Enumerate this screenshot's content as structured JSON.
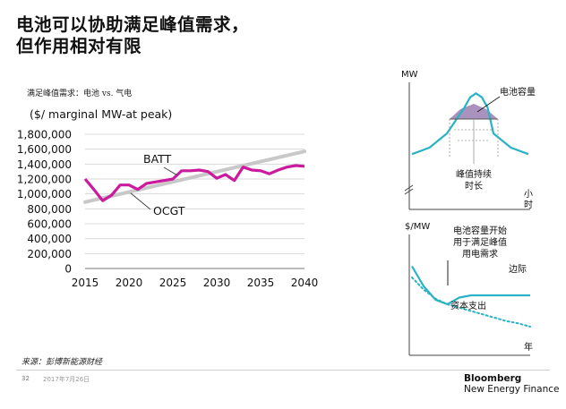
{
  "slide": {
    "title_line1": "电池可以协助满足峰值需求，",
    "title_line2": "但作用相对有限",
    "subtitle": "满足峰值需求：电池 vs. 气电",
    "source": "来源：彭博新能源财经",
    "page_number": "32",
    "date": "2017年7月26日",
    "brand_line1": "Bloomberg",
    "brand_line2": "New Energy Finance"
  },
  "colors": {
    "batt": "#cc1a9e",
    "ocgt": "#c8c8c8",
    "teal": "#29b3c4",
    "purple": "#9a7fb3",
    "axis": "#444444"
  },
  "chart_data": [
    {
      "type": "line",
      "title": "满足峰值需求：电池 vs. 气电",
      "ylabel": "($/ marginal MW-at peak)",
      "xlabel": "",
      "x_ticks": [
        "2015",
        "2020",
        "2025",
        "2030",
        "2035",
        "2040"
      ],
      "y_ticks": [
        "1,800,000",
        "1,600,000",
        "1,400,000",
        "1,200,000",
        "1,000,000",
        "800,000",
        "600,000",
        "400,000",
        "200,000",
        "0"
      ],
      "ylim": [
        0,
        1800000
      ],
      "xlim": [
        2015,
        2040
      ],
      "grid": true,
      "series": [
        {
          "name": "BATT",
          "x": [
            2015,
            2016,
            2017,
            2018,
            2019,
            2020,
            2021,
            2022,
            2023,
            2024,
            2025,
            2026,
            2027,
            2028,
            2029,
            2030,
            2031,
            2032,
            2033,
            2034,
            2035,
            2036,
            2037,
            2038,
            2039,
            2040
          ],
          "values": [
            1200000,
            1060000,
            910000,
            980000,
            1120000,
            1120000,
            1060000,
            1140000,
            1160000,
            1180000,
            1200000,
            1310000,
            1310000,
            1320000,
            1300000,
            1210000,
            1260000,
            1180000,
            1360000,
            1320000,
            1310000,
            1270000,
            1320000,
            1360000,
            1380000,
            1370000
          ]
        },
        {
          "name": "OCGT",
          "x": [
            2015,
            2040
          ],
          "values": [
            890000,
            1570000
          ]
        }
      ]
    },
    {
      "type": "line",
      "ylabel": "MW",
      "xlabel": "小时",
      "annotations": [
        "电池容量",
        "峰值持续时长"
      ],
      "series": [
        {
          "name": "demand",
          "x": [
            0,
            3,
            6,
            9,
            10,
            11,
            12,
            13,
            14,
            17,
            20
          ],
          "values": [
            4.0,
            4.5,
            5.6,
            7.6,
            8.4,
            8.7,
            8.4,
            7.6,
            5.6,
            4.5,
            4.0
          ]
        }
      ]
    },
    {
      "type": "line",
      "ylabel": "$/MW",
      "xlabel": "年",
      "annotations": [
        "电池容量开始用于满足峰值用电需求",
        "边际",
        "资本支出"
      ],
      "series": [
        {
          "name": "边际",
          "x": [
            0,
            1,
            2,
            3,
            4,
            5,
            6,
            7,
            8,
            9,
            10
          ],
          "values": [
            7.0,
            5.2,
            4.0,
            3.6,
            4.2,
            4.4,
            4.4,
            4.4,
            4.4,
            4.4,
            4.4
          ]
        },
        {
          "name": "资本支出",
          "x": [
            0,
            1,
            2,
            3,
            4,
            5,
            6,
            7,
            8,
            9,
            10
          ],
          "values": [
            6.0,
            4.9,
            4.1,
            3.6,
            3.3,
            3.0,
            2.7,
            2.4,
            2.1,
            1.9,
            1.6
          ]
        }
      ]
    }
  ]
}
